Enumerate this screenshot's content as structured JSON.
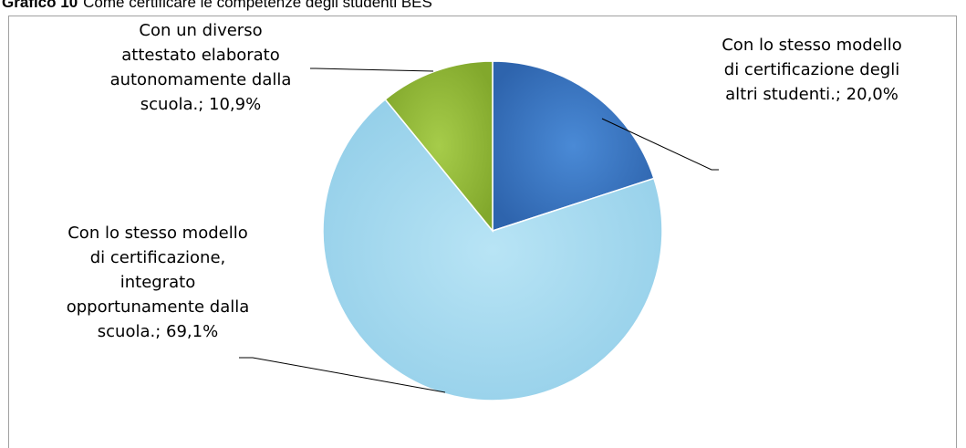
{
  "figure": {
    "label": "Grafico 10",
    "title": "Come certificare le competenze degli studenti BES"
  },
  "chart_data": {
    "type": "pie",
    "title": "",
    "slices": [
      {
        "label": "Con lo stesso modello di certificazione degli altri studenti.; 20,0%",
        "value": 20.0,
        "color": "#3a78c4"
      },
      {
        "label": "Con lo stesso modello di certificazione, integrato opportunamente dalla scuola.; 69,1%",
        "value": 69.1,
        "color": "#a6dbf0"
      },
      {
        "label": "Con un diverso attestato elaborato autonomamente dalla scuola.; 10,9%",
        "value": 10.9,
        "color": "#96bf3a"
      }
    ]
  }
}
